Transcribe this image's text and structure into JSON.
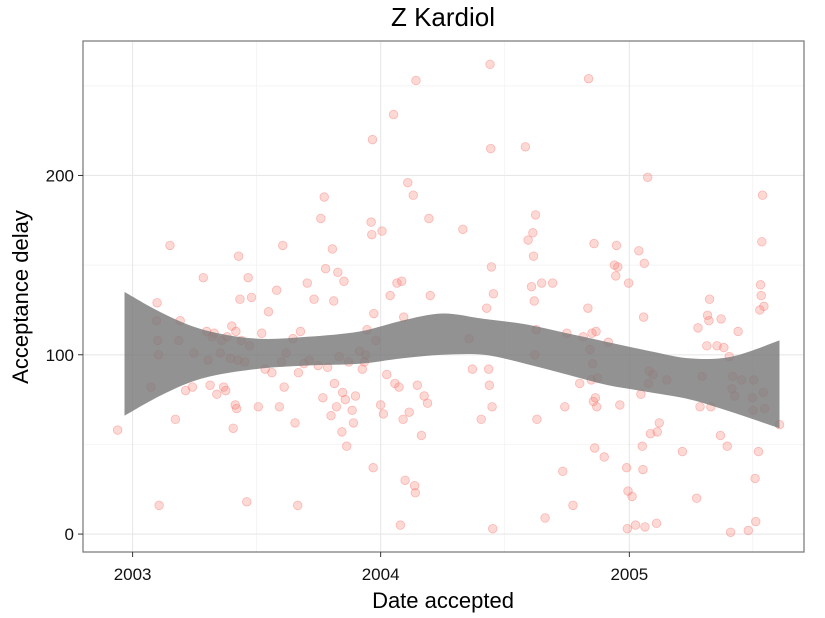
{
  "chart_data": {
    "type": "scatter",
    "title": "Z Kardiol",
    "xlabel": "Date accepted",
    "ylabel": "Acceptance delay",
    "x_ticks": [
      "2003",
      "2004",
      "2005"
    ],
    "y_ticks": [
      "0",
      "100",
      "200"
    ],
    "x_tick_values": [
      "2003-01-01",
      "2004-01-01",
      "2005-01-01"
    ],
    "y_tick_values": [
      0,
      100,
      200
    ],
    "xlim": [
      "2002-10-20",
      "2005-09-15"
    ],
    "ylim": [
      -10,
      275
    ],
    "grid": true,
    "point_color": "#f8766d",
    "band_color": "#7a7a7a",
    "points": [
      {
        "x": "2002-12-10",
        "y": 58
      },
      {
        "x": "2003-01-28",
        "y": 82
      },
      {
        "x": "2003-02-05",
        "y": 119
      },
      {
        "x": "2003-02-06",
        "y": 129
      },
      {
        "x": "2003-02-07",
        "y": 108
      },
      {
        "x": "2003-02-08",
        "y": 100
      },
      {
        "x": "2003-02-09",
        "y": 16
      },
      {
        "x": "2003-02-25",
        "y": 161
      },
      {
        "x": "2003-03-05",
        "y": 64
      },
      {
        "x": "2003-03-10",
        "y": 108
      },
      {
        "x": "2003-03-12",
        "y": 119
      },
      {
        "x": "2003-03-20",
        "y": 80
      },
      {
        "x": "2003-03-30",
        "y": 82
      },
      {
        "x": "2003-04-01",
        "y": 101
      },
      {
        "x": "2003-04-15",
        "y": 143
      },
      {
        "x": "2003-04-20",
        "y": 113
      },
      {
        "x": "2003-04-22",
        "y": 97
      },
      {
        "x": "2003-04-25",
        "y": 83
      },
      {
        "x": "2003-04-28",
        "y": 110
      },
      {
        "x": "2003-05-01",
        "y": 112
      },
      {
        "x": "2003-05-05",
        "y": 78
      },
      {
        "x": "2003-05-10",
        "y": 101
      },
      {
        "x": "2003-05-12",
        "y": 108
      },
      {
        "x": "2003-05-15",
        "y": 82
      },
      {
        "x": "2003-05-18",
        "y": 80
      },
      {
        "x": "2003-05-20",
        "y": 110
      },
      {
        "x": "2003-05-25",
        "y": 98
      },
      {
        "x": "2003-05-27",
        "y": 116
      },
      {
        "x": "2003-05-29",
        "y": 59
      },
      {
        "x": "2003-06-01",
        "y": 72
      },
      {
        "x": "2003-06-02",
        "y": 113
      },
      {
        "x": "2003-06-03",
        "y": 70
      },
      {
        "x": "2003-06-05",
        "y": 97
      },
      {
        "x": "2003-06-06",
        "y": 155
      },
      {
        "x": "2003-06-08",
        "y": 131
      },
      {
        "x": "2003-06-10",
        "y": 108
      },
      {
        "x": "2003-06-15",
        "y": 96
      },
      {
        "x": "2003-06-18",
        "y": 18
      },
      {
        "x": "2003-06-20",
        "y": 143
      },
      {
        "x": "2003-06-22",
        "y": 105
      },
      {
        "x": "2003-06-25",
        "y": 132
      },
      {
        "x": "2003-07-05",
        "y": 71
      },
      {
        "x": "2003-07-10",
        "y": 112
      },
      {
        "x": "2003-07-15",
        "y": 92
      },
      {
        "x": "2003-07-20",
        "y": 124
      },
      {
        "x": "2003-07-25",
        "y": 90
      },
      {
        "x": "2003-08-01",
        "y": 136
      },
      {
        "x": "2003-08-05",
        "y": 71
      },
      {
        "x": "2003-08-08",
        "y": 96
      },
      {
        "x": "2003-08-10",
        "y": 161
      },
      {
        "x": "2003-08-12",
        "y": 82
      },
      {
        "x": "2003-08-15",
        "y": 101
      },
      {
        "x": "2003-08-25",
        "y": 109
      },
      {
        "x": "2003-08-28",
        "y": 62
      },
      {
        "x": "2003-09-01",
        "y": 16
      },
      {
        "x": "2003-09-02",
        "y": 90
      },
      {
        "x": "2003-09-05",
        "y": 113
      },
      {
        "x": "2003-09-10",
        "y": 95
      },
      {
        "x": "2003-09-15",
        "y": 140
      },
      {
        "x": "2003-09-18",
        "y": 97
      },
      {
        "x": "2003-09-25",
        "y": 131
      },
      {
        "x": "2003-10-01",
        "y": 94
      },
      {
        "x": "2003-10-05",
        "y": 176
      },
      {
        "x": "2003-10-08",
        "y": 76
      },
      {
        "x": "2003-10-10",
        "y": 188
      },
      {
        "x": "2003-10-12",
        "y": 148
      },
      {
        "x": "2003-10-15",
        "y": 93
      },
      {
        "x": "2003-10-20",
        "y": 66
      },
      {
        "x": "2003-10-22",
        "y": 159
      },
      {
        "x": "2003-10-24",
        "y": 130
      },
      {
        "x": "2003-10-25",
        "y": 84
      },
      {
        "x": "2003-10-28",
        "y": 71
      },
      {
        "x": "2003-10-30",
        "y": 146
      },
      {
        "x": "2003-11-01",
        "y": 99
      },
      {
        "x": "2003-11-05",
        "y": 57
      },
      {
        "x": "2003-11-06",
        "y": 79
      },
      {
        "x": "2003-11-08",
        "y": 141
      },
      {
        "x": "2003-11-10",
        "y": 75
      },
      {
        "x": "2003-11-12",
        "y": 49
      },
      {
        "x": "2003-11-15",
        "y": 96
      },
      {
        "x": "2003-11-20",
        "y": 69
      },
      {
        "x": "2003-11-22",
        "y": 62
      },
      {
        "x": "2003-11-25",
        "y": 77
      },
      {
        "x": "2003-12-01",
        "y": 102
      },
      {
        "x": "2003-12-05",
        "y": 92
      },
      {
        "x": "2003-12-08",
        "y": 96
      },
      {
        "x": "2003-12-10",
        "y": 100
      },
      {
        "x": "2003-12-12",
        "y": 114
      },
      {
        "x": "2003-12-18",
        "y": 174
      },
      {
        "x": "2003-12-19",
        "y": 167
      },
      {
        "x": "2003-12-20",
        "y": 220
      },
      {
        "x": "2003-12-21",
        "y": 37
      },
      {
        "x": "2003-12-22",
        "y": 123
      },
      {
        "x": "2003-12-25",
        "y": 108
      },
      {
        "x": "2004-01-01",
        "y": 72
      },
      {
        "x": "2004-01-03",
        "y": 169
      },
      {
        "x": "2004-01-05",
        "y": 67
      },
      {
        "x": "2004-01-10",
        "y": 89
      },
      {
        "x": "2004-01-15",
        "y": 133
      },
      {
        "x": "2004-01-20",
        "y": 234
      },
      {
        "x": "2004-01-22",
        "y": 84
      },
      {
        "x": "2004-01-25",
        "y": 140
      },
      {
        "x": "2004-01-28",
        "y": 82
      },
      {
        "x": "2004-01-30",
        "y": 5
      },
      {
        "x": "2004-02-01",
        "y": 141
      },
      {
        "x": "2004-02-03",
        "y": 64
      },
      {
        "x": "2004-02-04",
        "y": 121
      },
      {
        "x": "2004-02-06",
        "y": 30
      },
      {
        "x": "2004-02-10",
        "y": 196
      },
      {
        "x": "2004-02-12",
        "y": 68
      },
      {
        "x": "2004-02-18",
        "y": 189
      },
      {
        "x": "2004-02-20",
        "y": 27
      },
      {
        "x": "2004-02-21",
        "y": 23
      },
      {
        "x": "2004-02-22",
        "y": 253
      },
      {
        "x": "2004-02-24",
        "y": 83
      },
      {
        "x": "2004-03-01",
        "y": 55
      },
      {
        "x": "2004-03-05",
        "y": 77
      },
      {
        "x": "2004-03-10",
        "y": 73
      },
      {
        "x": "2004-03-12",
        "y": 176
      },
      {
        "x": "2004-03-14",
        "y": 133
      },
      {
        "x": "2004-05-01",
        "y": 170
      },
      {
        "x": "2004-05-10",
        "y": 109
      },
      {
        "x": "2004-05-15",
        "y": 92
      },
      {
        "x": "2004-05-28",
        "y": 64
      },
      {
        "x": "2004-06-05",
        "y": 126
      },
      {
        "x": "2004-06-08",
        "y": 92
      },
      {
        "x": "2004-06-09",
        "y": 83
      },
      {
        "x": "2004-06-10",
        "y": 262
      },
      {
        "x": "2004-06-11",
        "y": 215
      },
      {
        "x": "2004-06-12",
        "y": 149
      },
      {
        "x": "2004-06-13",
        "y": 71
      },
      {
        "x": "2004-06-14",
        "y": 3
      },
      {
        "x": "2004-06-15",
        "y": 134
      },
      {
        "x": "2004-08-01",
        "y": 216
      },
      {
        "x": "2004-08-05",
        "y": 164
      },
      {
        "x": "2004-08-10",
        "y": 138
      },
      {
        "x": "2004-08-12",
        "y": 168
      },
      {
        "x": "2004-08-13",
        "y": 155
      },
      {
        "x": "2004-08-14",
        "y": 130
      },
      {
        "x": "2004-08-15",
        "y": 100
      },
      {
        "x": "2004-08-16",
        "y": 178
      },
      {
        "x": "2004-08-17",
        "y": 114
      },
      {
        "x": "2004-08-18",
        "y": 64
      },
      {
        "x": "2004-08-25",
        "y": 140
      },
      {
        "x": "2004-08-30",
        "y": 9
      },
      {
        "x": "2004-09-10",
        "y": 140
      },
      {
        "x": "2004-09-25",
        "y": 35
      },
      {
        "x": "2004-09-28",
        "y": 71
      },
      {
        "x": "2004-10-01",
        "y": 112
      },
      {
        "x": "2004-10-10",
        "y": 16
      },
      {
        "x": "2004-10-20",
        "y": 84
      },
      {
        "x": "2004-10-25",
        "y": 110
      },
      {
        "x": "2004-11-01",
        "y": 126
      },
      {
        "x": "2004-11-02",
        "y": 254
      },
      {
        "x": "2004-11-04",
        "y": 103
      },
      {
        "x": "2004-11-06",
        "y": 86
      },
      {
        "x": "2004-11-07",
        "y": 112
      },
      {
        "x": "2004-11-08",
        "y": 95
      },
      {
        "x": "2004-11-09",
        "y": 74
      },
      {
        "x": "2004-11-10",
        "y": 162
      },
      {
        "x": "2004-11-11",
        "y": 48
      },
      {
        "x": "2004-11-12",
        "y": 76
      },
      {
        "x": "2004-11-13",
        "y": 113
      },
      {
        "x": "2004-11-14",
        "y": 71
      },
      {
        "x": "2004-11-15",
        "y": 87
      },
      {
        "x": "2004-11-25",
        "y": 43
      },
      {
        "x": "2004-12-01",
        "y": 107
      },
      {
        "x": "2004-12-10",
        "y": 150
      },
      {
        "x": "2004-12-12",
        "y": 144
      },
      {
        "x": "2004-12-13",
        "y": 161
      },
      {
        "x": "2004-12-15",
        "y": 149
      },
      {
        "x": "2004-12-18",
        "y": 72
      },
      {
        "x": "2004-12-28",
        "y": 37
      },
      {
        "x": "2004-12-29",
        "y": 3
      },
      {
        "x": "2004-12-30",
        "y": 24
      },
      {
        "x": "2004-12-31",
        "y": 140
      },
      {
        "x": "2005-01-05",
        "y": 21
      },
      {
        "x": "2005-01-10",
        "y": 5
      },
      {
        "x": "2005-01-15",
        "y": 158
      },
      {
        "x": "2005-01-18",
        "y": 78
      },
      {
        "x": "2005-01-20",
        "y": 49
      },
      {
        "x": "2005-01-21",
        "y": 36
      },
      {
        "x": "2005-01-22",
        "y": 121
      },
      {
        "x": "2005-01-23",
        "y": 151
      },
      {
        "x": "2005-01-24",
        "y": 4
      },
      {
        "x": "2005-01-28",
        "y": 199
      },
      {
        "x": "2005-01-29",
        "y": 84
      },
      {
        "x": "2005-01-30",
        "y": 91
      },
      {
        "x": "2005-02-01",
        "y": 56
      },
      {
        "x": "2005-02-05",
        "y": 89
      },
      {
        "x": "2005-02-10",
        "y": 6
      },
      {
        "x": "2005-02-11",
        "y": 57
      },
      {
        "x": "2005-02-14",
        "y": 62
      },
      {
        "x": "2005-02-25",
        "y": 86
      },
      {
        "x": "2005-03-20",
        "y": 46
      },
      {
        "x": "2005-04-10",
        "y": 20
      },
      {
        "x": "2005-04-12",
        "y": 115
      },
      {
        "x": "2005-04-15",
        "y": 71
      },
      {
        "x": "2005-04-18",
        "y": 88
      },
      {
        "x": "2005-04-25",
        "y": 105
      },
      {
        "x": "2005-04-26",
        "y": 122
      },
      {
        "x": "2005-04-28",
        "y": 119
      },
      {
        "x": "2005-04-29",
        "y": 131
      },
      {
        "x": "2005-05-01",
        "y": 71
      },
      {
        "x": "2005-05-10",
        "y": 105
      },
      {
        "x": "2005-05-15",
        "y": 55
      },
      {
        "x": "2005-05-16",
        "y": 120
      },
      {
        "x": "2005-05-20",
        "y": 104
      },
      {
        "x": "2005-05-25",
        "y": 49
      },
      {
        "x": "2005-05-28",
        "y": 99
      },
      {
        "x": "2005-05-30",
        "y": 1
      },
      {
        "x": "2005-06-01",
        "y": 81
      },
      {
        "x": "2005-06-02",
        "y": 88
      },
      {
        "x": "2005-06-05",
        "y": 77
      },
      {
        "x": "2005-06-10",
        "y": 113
      },
      {
        "x": "2005-06-15",
        "y": 86
      },
      {
        "x": "2005-06-25",
        "y": 2
      },
      {
        "x": "2005-07-01",
        "y": 76
      },
      {
        "x": "2005-07-02",
        "y": 69
      },
      {
        "x": "2005-07-03",
        "y": 86
      },
      {
        "x": "2005-07-05",
        "y": 31
      },
      {
        "x": "2005-07-06",
        "y": 7
      },
      {
        "x": "2005-07-10",
        "y": 46
      },
      {
        "x": "2005-07-12",
        "y": 125
      },
      {
        "x": "2005-07-13",
        "y": 139
      },
      {
        "x": "2005-07-14",
        "y": 133
      },
      {
        "x": "2005-07-15",
        "y": 163
      },
      {
        "x": "2005-07-16",
        "y": 189
      },
      {
        "x": "2005-07-17",
        "y": 79
      },
      {
        "x": "2005-07-18",
        "y": 127
      },
      {
        "x": "2005-07-19",
        "y": 70
      },
      {
        "x": "2005-08-10",
        "y": 61
      }
    ],
    "smooth_band": [
      {
        "x": "2002-12-20",
        "lower": 66,
        "upper": 135
      },
      {
        "x": "2003-02-15",
        "lower": 78,
        "upper": 123
      },
      {
        "x": "2003-04-15",
        "lower": 87,
        "upper": 114
      },
      {
        "x": "2003-07-01",
        "lower": 92,
        "upper": 109
      },
      {
        "x": "2003-09-15",
        "lower": 94,
        "upper": 110
      },
      {
        "x": "2003-12-01",
        "lower": 95,
        "upper": 113
      },
      {
        "x": "2004-02-01",
        "lower": 98,
        "upper": 119
      },
      {
        "x": "2004-04-01",
        "lower": 100,
        "upper": 123
      },
      {
        "x": "2004-06-01",
        "lower": 100,
        "upper": 120
      },
      {
        "x": "2004-08-01",
        "lower": 95,
        "upper": 117
      },
      {
        "x": "2004-10-01",
        "lower": 89,
        "upper": 112
      },
      {
        "x": "2004-12-01",
        "lower": 83,
        "upper": 107
      },
      {
        "x": "2005-02-01",
        "lower": 79,
        "upper": 102
      },
      {
        "x": "2005-04-01",
        "lower": 75,
        "upper": 98
      },
      {
        "x": "2005-06-01",
        "lower": 68,
        "upper": 99
      },
      {
        "x": "2005-08-10",
        "lower": 59,
        "upper": 108
      }
    ]
  }
}
